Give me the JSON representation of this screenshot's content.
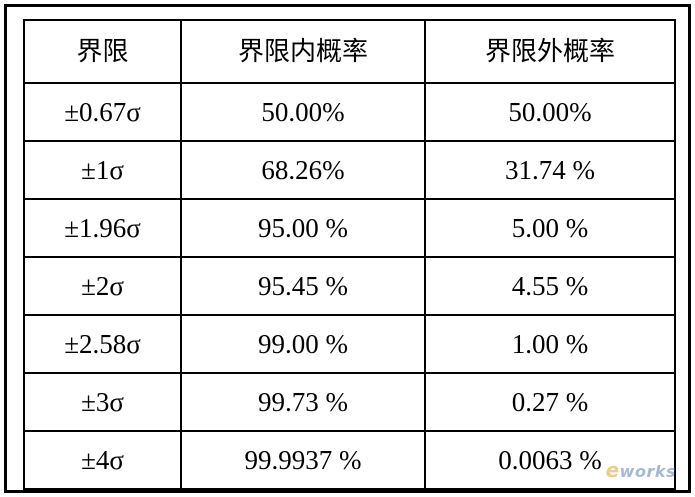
{
  "table": {
    "headers": [
      "界限",
      "界限内概率",
      "界限外概率"
    ],
    "rows": [
      [
        "±0.67σ",
        "50.00%",
        "50.00%"
      ],
      [
        "±1σ",
        "68.26%",
        "31.74 %"
      ],
      [
        "±1.96σ",
        "95.00 %",
        "5.00 %"
      ],
      [
        "±2σ",
        "95.45 %",
        "4.55 %"
      ],
      [
        "±2.58σ",
        "99.00 %",
        "1.00 %"
      ],
      [
        "±3σ",
        "99.73 %",
        "0.27 %"
      ],
      [
        "±4σ",
        "99.9937 %",
        "0.0063 %"
      ]
    ]
  },
  "watermark": {
    "e": "e",
    "rest": "works"
  },
  "colors": {
    "border": "#000000",
    "background": "#ffffff",
    "watermark_e": "#d9a52b",
    "watermark_rest": "#5a7fb5"
  }
}
